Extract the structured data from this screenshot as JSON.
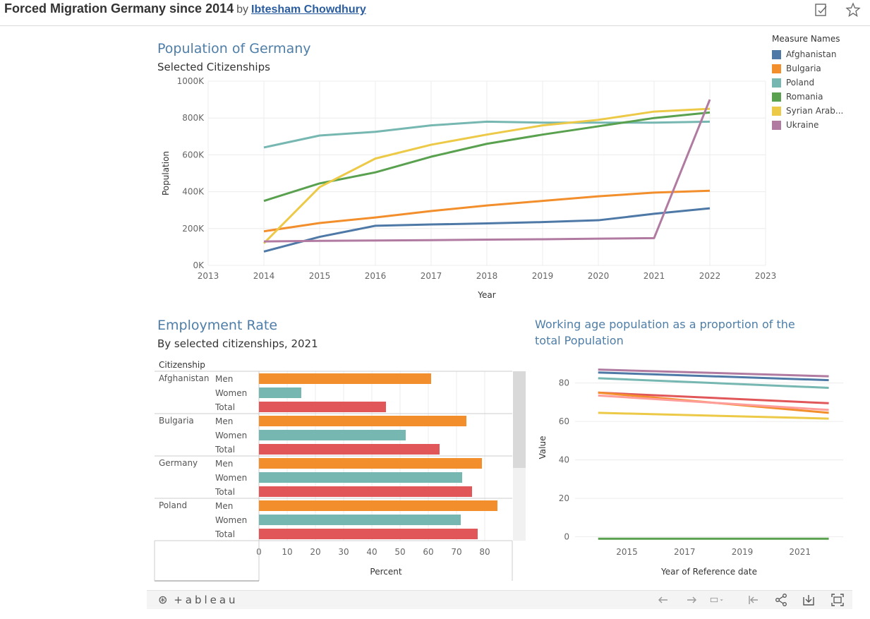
{
  "header": {
    "title": "Forced Migration Germany since 2014",
    "by": "by",
    "author": "Ibtesham Chowdhury",
    "icons": [
      "edit-icon",
      "star-icon"
    ]
  },
  "colors": {
    "Afghanistan": "#4e79a7",
    "Bulgaria": "#f28e2b",
    "Poland": "#76b7b2",
    "Romania": "#59a14f",
    "Syrian Arab...": "#edc948",
    "Ukraine": "#b07aa1",
    "Men": "#f28e2b",
    "Women": "#76b7b2",
    "Total": "#e15759"
  },
  "legend": {
    "title": "Measure Names",
    "items": [
      "Afghanistan",
      "Bulgaria",
      "Poland",
      "Romania",
      "Syrian Arab...",
      "Ukraine"
    ]
  },
  "chart_data": [
    {
      "type": "line",
      "title": "Population of Germany",
      "subtitle": "Selected Citizenships",
      "xlabel": "Year",
      "ylabel": "Population",
      "x": [
        2014,
        2015,
        2016,
        2017,
        2018,
        2019,
        2020,
        2021,
        2022
      ],
      "xlim": [
        2013,
        2023
      ],
      "ylim": [
        0,
        1000000
      ],
      "yticks": [
        0,
        200000,
        400000,
        600000,
        800000,
        1000000
      ],
      "ytick_labels": [
        "0K",
        "200K",
        "400K",
        "600K",
        "800K",
        "1000K"
      ],
      "xtick_labels": [
        "2013",
        "2014",
        "2015",
        "2016",
        "2017",
        "2018",
        "2019",
        "2020",
        "2021",
        "2022",
        "2023"
      ],
      "grid": true,
      "legend": "right",
      "series": [
        {
          "name": "Afghanistan",
          "values": [
            75000,
            155000,
            215000,
            222000,
            228000,
            235000,
            245000,
            280000,
            310000
          ]
        },
        {
          "name": "Bulgaria",
          "values": [
            185000,
            230000,
            260000,
            295000,
            325000,
            350000,
            375000,
            395000,
            405000
          ]
        },
        {
          "name": "Poland",
          "values": [
            640000,
            705000,
            725000,
            760000,
            780000,
            775000,
            775000,
            775000,
            780000
          ]
        },
        {
          "name": "Romania",
          "values": [
            350000,
            445000,
            505000,
            590000,
            660000,
            710000,
            755000,
            800000,
            830000
          ]
        },
        {
          "name": "Syrian Arab...",
          "values": [
            120000,
            425000,
            580000,
            655000,
            710000,
            760000,
            790000,
            835000,
            850000
          ]
        },
        {
          "name": "Ukraine",
          "values": [
            130000,
            133000,
            135000,
            137000,
            140000,
            142000,
            145000,
            148000,
            900000
          ]
        }
      ]
    },
    {
      "type": "bar",
      "orientation": "horizontal",
      "title": "Employment Rate",
      "subtitle": "By selected citizenships, 2021",
      "row_header": "Citizenship",
      "xlabel": "Percent",
      "xlim": [
        0,
        90
      ],
      "xticks": [
        0,
        10,
        20,
        30,
        40,
        50,
        60,
        70,
        80
      ],
      "groups": [
        {
          "name": "Afghanistan",
          "bars": [
            {
              "label": "Men",
              "value": 61
            },
            {
              "label": "Women",
              "value": 15
            },
            {
              "label": "Total",
              "value": 45
            }
          ]
        },
        {
          "name": "Bulgaria",
          "bars": [
            {
              "label": "Men",
              "value": 73.5
            },
            {
              "label": "Women",
              "value": 52
            },
            {
              "label": "Total",
              "value": 64
            }
          ]
        },
        {
          "name": "Germany",
          "bars": [
            {
              "label": "Men",
              "value": 79
            },
            {
              "label": "Women",
              "value": 72
            },
            {
              "label": "Total",
              "value": 75.5
            }
          ]
        },
        {
          "name": "Poland",
          "bars": [
            {
              "label": "Men",
              "value": 84.5
            },
            {
              "label": "Women",
              "value": 71.5
            },
            {
              "label": "Total",
              "value": 77.5
            }
          ]
        }
      ]
    },
    {
      "type": "line",
      "title": "Working age population as a proportion of the total Population",
      "xlabel": "Year of Reference date",
      "ylabel": "Value",
      "x": [
        2014,
        2022
      ],
      "xlim": [
        2013.2,
        2022.5
      ],
      "ylim": [
        -2,
        92
      ],
      "yticks": [
        0,
        20,
        40,
        60,
        80
      ],
      "xticks": [
        2015,
        2017,
        2019,
        2021
      ],
      "grid": true,
      "series": [
        {
          "color": "#b07aa1",
          "values": [
            87,
            83.5
          ]
        },
        {
          "color": "#4e79a7",
          "values": [
            85.5,
            81.5
          ]
        },
        {
          "color": "#76b7b2",
          "values": [
            82.5,
            77.5
          ]
        },
        {
          "color": "#e15759",
          "values": [
            75,
            69.5
          ]
        },
        {
          "color": "#f28e2b",
          "values": [
            75,
            64.5
          ]
        },
        {
          "color": "#ff9d9a",
          "values": [
            73.5,
            66
          ]
        },
        {
          "color": "#edc948",
          "values": [
            64.5,
            61.5
          ]
        },
        {
          "color": "#59a14f",
          "values": [
            -1,
            -1
          ]
        }
      ]
    }
  ],
  "footer": {
    "logo": "+ableau",
    "icons": [
      "undo-icon",
      "redo-icon",
      "revert-icon",
      "pause-icon",
      "share-icon",
      "download-icon",
      "fullscreen-icon"
    ]
  }
}
